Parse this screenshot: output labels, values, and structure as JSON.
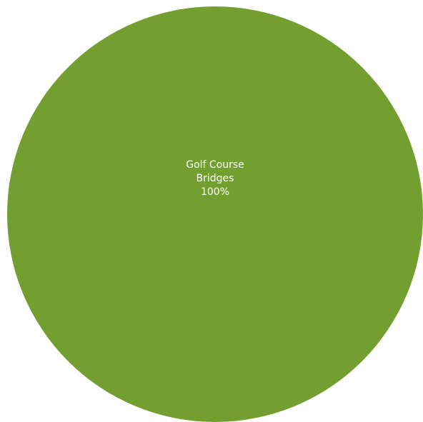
{
  "chart_data": {
    "type": "pie",
    "title": "",
    "categories": [
      "Golf Course Bridges"
    ],
    "values": [
      100
    ],
    "colors": [
      "#739F31"
    ],
    "slices": [
      {
        "label_lines": [
          "Golf Course",
          "Bridges"
        ],
        "percent_label": "100%",
        "value": 100,
        "color": "#739F31"
      }
    ],
    "legend": "none"
  }
}
